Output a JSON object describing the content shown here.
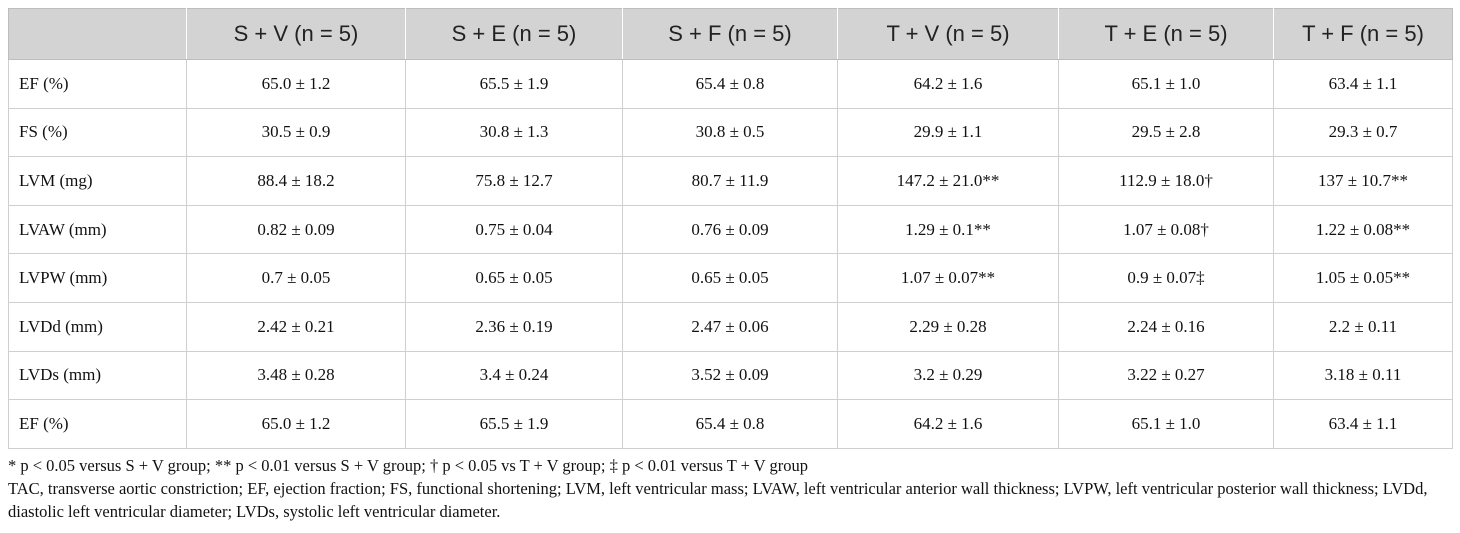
{
  "table": {
    "headers": [
      "",
      "S + V (n = 5)",
      "S + E (n = 5)",
      "S + F (n = 5)",
      "T + V (n = 5)",
      "T + E (n = 5)",
      "T + F (n = 5)"
    ],
    "rows": [
      [
        "EF (%)",
        "65.0 ± 1.2",
        "65.5 ± 1.9",
        "65.4 ± 0.8",
        "64.2 ± 1.6",
        "65.1 ± 1.0",
        "63.4 ± 1.1"
      ],
      [
        "FS (%)",
        "30.5 ± 0.9",
        "30.8 ± 1.3",
        "30.8 ± 0.5",
        "29.9 ± 1.1",
        "29.5 ± 2.8",
        "29.3 ± 0.7"
      ],
      [
        "LVM (mg)",
        "88.4 ± 18.2",
        "75.8 ± 12.7",
        "80.7 ± 11.9",
        "147.2 ± 21.0**",
        "112.9 ± 18.0†",
        "137 ± 10.7**"
      ],
      [
        "LVAW (mm)",
        "0.82 ± 0.09",
        "0.75 ± 0.04",
        "0.76 ± 0.09",
        "1.29 ± 0.1**",
        "1.07 ± 0.08†",
        "1.22 ± 0.08**"
      ],
      [
        "LVPW (mm)",
        "0.7 ± 0.05",
        "0.65 ± 0.05",
        "0.65 ± 0.05",
        "1.07 ± 0.07**",
        "0.9 ± 0.07‡",
        "1.05 ± 0.05**"
      ],
      [
        "LVDd (mm)",
        "2.42 ± 0.21",
        "2.36 ± 0.19",
        "2.47 ± 0.06",
        "2.29 ± 0.28",
        "2.24 ± 0.16",
        "2.2 ± 0.11"
      ],
      [
        "LVDs (mm)",
        "3.48 ± 0.28",
        "3.4 ± 0.24",
        "3.52 ± 0.09",
        "3.2 ± 0.29",
        "3.22 ± 0.27",
        "3.18 ± 0.11"
      ],
      [
        "EF (%)",
        "65.0 ± 1.2",
        "65.5 ± 1.9",
        "65.4 ± 0.8",
        "64.2 ± 1.6",
        "65.1 ± 1.0",
        "63.4 ± 1.1"
      ]
    ]
  },
  "footnotes": {
    "significance": "* p < 0.05 versus S + V group; ** p < 0.01 versus S + V group; † p < 0.05 vs T + V group; ‡ p < 0.01 versus T + V group",
    "abbreviations": "TAC, transverse aortic constriction; EF, ejection fraction; FS, functional shortening; LVM, left ventricular mass; LVAW, left ventricular anterior wall thickness; LVPW, left ventricular posterior wall thickness; LVDd, diastolic left ventricular diameter; LVDs, systolic left ventricular diameter."
  }
}
